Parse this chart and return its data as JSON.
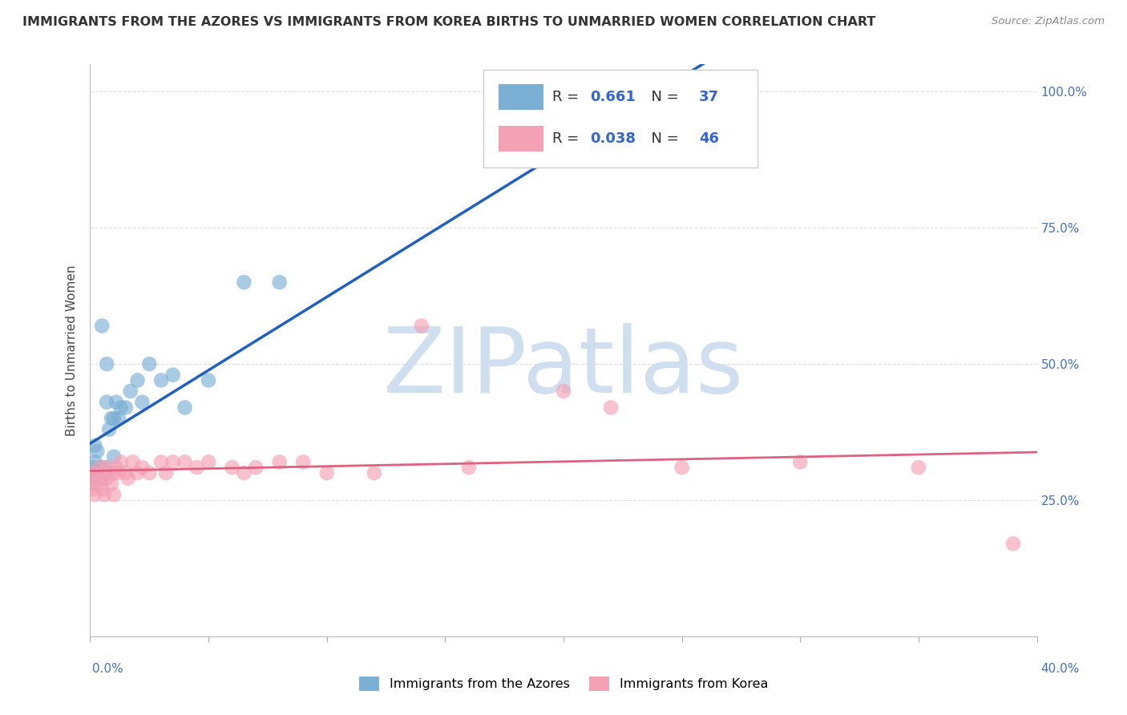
{
  "title": "IMMIGRANTS FROM THE AZORES VS IMMIGRANTS FROM KOREA BIRTHS TO UNMARRIED WOMEN CORRELATION CHART",
  "source": "Source: ZipAtlas.com",
  "ylabel": "Births to Unmarried Women",
  "xmin": 0.0,
  "xmax": 0.4,
  "ymin": 0.0,
  "ymax": 1.05,
  "yticks": [
    0.0,
    0.25,
    0.5,
    0.75,
    1.0
  ],
  "ytick_labels_right": [
    "",
    "25.0%",
    "50.0%",
    "75.0%",
    "100.0%"
  ],
  "legend_azores_R": "0.661",
  "legend_azores_N": "37",
  "legend_korea_R": "0.038",
  "legend_korea_N": "46",
  "legend_label_azores": "Immigrants from the Azores",
  "legend_label_korea": "Immigrants from Korea",
  "color_azores": "#7bafd4",
  "color_korea": "#f4a0b5",
  "color_line_azores": "#2060c0",
  "color_line_korea": "#e06080",
  "watermark_text": "ZIPatlas",
  "watermark_color": "#d0dff0",
  "background_color": "#ffffff",
  "grid_color": "#dddddd",
  "azores_x": [
    0.001,
    0.001,
    0.001,
    0.002,
    0.002,
    0.002,
    0.003,
    0.003,
    0.003,
    0.004,
    0.004,
    0.005,
    0.005,
    0.005,
    0.006,
    0.006,
    0.007,
    0.007,
    0.008,
    0.009,
    0.01,
    0.01,
    0.011,
    0.012,
    0.013,
    0.015,
    0.017,
    0.02,
    0.022,
    0.025,
    0.03,
    0.035,
    0.04,
    0.05,
    0.065,
    0.08,
    0.25
  ],
  "azores_y": [
    0.3,
    0.31,
    0.28,
    0.3,
    0.35,
    0.32,
    0.3,
    0.34,
    0.29,
    0.3,
    0.31,
    0.29,
    0.57,
    0.3,
    0.31,
    0.3,
    0.5,
    0.43,
    0.38,
    0.4,
    0.33,
    0.4,
    0.43,
    0.4,
    0.42,
    0.42,
    0.45,
    0.47,
    0.43,
    0.5,
    0.47,
    0.48,
    0.42,
    0.47,
    0.65,
    0.65,
    0.95
  ],
  "korea_x": [
    0.001,
    0.001,
    0.002,
    0.002,
    0.003,
    0.004,
    0.005,
    0.005,
    0.006,
    0.006,
    0.007,
    0.007,
    0.008,
    0.009,
    0.01,
    0.01,
    0.011,
    0.012,
    0.013,
    0.015,
    0.016,
    0.018,
    0.02,
    0.022,
    0.025,
    0.03,
    0.032,
    0.035,
    0.04,
    0.045,
    0.05,
    0.06,
    0.065,
    0.07,
    0.08,
    0.09,
    0.1,
    0.12,
    0.14,
    0.16,
    0.2,
    0.22,
    0.25,
    0.3,
    0.35,
    0.39
  ],
  "korea_y": [
    0.27,
    0.3,
    0.26,
    0.29,
    0.28,
    0.31,
    0.27,
    0.29,
    0.3,
    0.26,
    0.29,
    0.31,
    0.3,
    0.28,
    0.3,
    0.26,
    0.31,
    0.3,
    0.32,
    0.3,
    0.29,
    0.32,
    0.3,
    0.31,
    0.3,
    0.32,
    0.3,
    0.32,
    0.32,
    0.31,
    0.32,
    0.31,
    0.3,
    0.31,
    0.32,
    0.32,
    0.3,
    0.3,
    0.57,
    0.31,
    0.45,
    0.42,
    0.31,
    0.32,
    0.31,
    0.17
  ]
}
